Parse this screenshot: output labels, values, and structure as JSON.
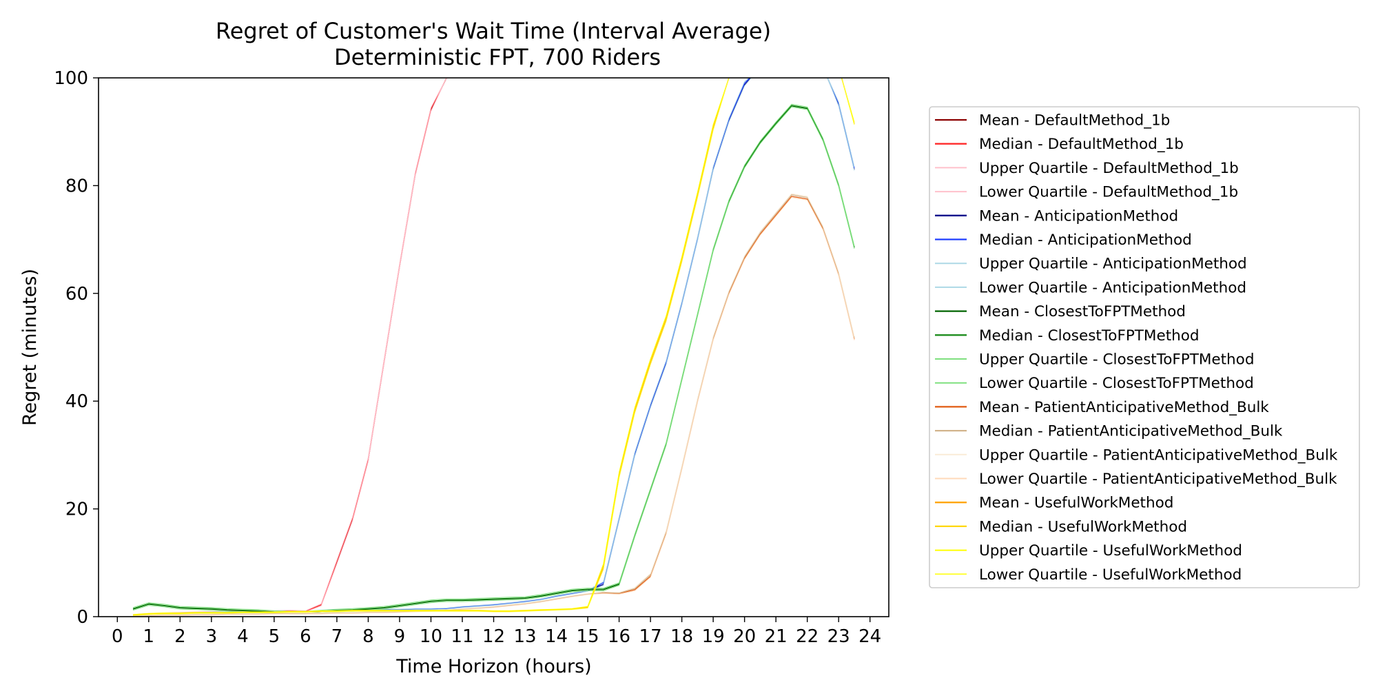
{
  "chart_data": {
    "type": "line",
    "title": "Regret of Customer's Wait Time (Interval Average)",
    "subtitle": "Deterministic FPT, 700 Riders",
    "xlabel": "Time Horizon (hours)",
    "ylabel": "Regret (minutes)",
    "xlim": [
      -0.6,
      24.6
    ],
    "ylim": [
      0,
      100
    ],
    "xticks": [
      0,
      1,
      2,
      3,
      4,
      5,
      6,
      7,
      8,
      9,
      10,
      11,
      12,
      13,
      14,
      15,
      16,
      17,
      18,
      19,
      20,
      21,
      22,
      23,
      24
    ],
    "yticks": [
      0,
      20,
      40,
      60,
      80,
      100
    ],
    "grid": false,
    "legend_position": "outside-right",
    "x": [
      0.5,
      1,
      1.5,
      2,
      2.5,
      3,
      3.5,
      4,
      4.5,
      5,
      5.5,
      6,
      6.5,
      7,
      7.5,
      8,
      8.5,
      9,
      9.5,
      10,
      10.5,
      11,
      11.5,
      12,
      12.5,
      13,
      13.5,
      14,
      14.5,
      15,
      15.5,
      16,
      16.5,
      17,
      17.5,
      18,
      18.5,
      19,
      19.5,
      20,
      20.5,
      21,
      21.5,
      22,
      22.5,
      23,
      23.5
    ],
    "series": [
      {
        "name": "Mean - DefaultMethod_1b",
        "color": "#8b0000",
        "width": 1.3,
        "values": [
          0.3,
          0.5,
          0.6,
          0.7,
          0.8,
          0.9,
          0.9,
          1.0,
          1.0,
          1.0,
          1.1,
          1.0,
          2.2,
          10,
          18,
          29,
          47,
          65,
          82,
          94,
          100,
          102,
          102,
          102,
          102,
          102,
          102,
          102,
          102,
          102,
          102,
          102,
          102,
          102,
          102,
          102,
          102,
          102,
          102,
          102,
          102,
          102,
          102,
          102,
          102,
          102,
          102
        ]
      },
      {
        "name": "Median - DefaultMethod_1b",
        "color": "#ff2a2a",
        "width": 1.3,
        "values": [
          0.3,
          0.5,
          0.6,
          0.7,
          0.8,
          0.9,
          0.9,
          1.0,
          1.0,
          1.0,
          1.1,
          1.0,
          2.2,
          10.3,
          18.3,
          29.3,
          47.3,
          65.3,
          82.3,
          94.3,
          100,
          102,
          102,
          102,
          102,
          102,
          102,
          102,
          102,
          102,
          102,
          102,
          102,
          102,
          102,
          102,
          102,
          102,
          102,
          102,
          102,
          102,
          102,
          102,
          102,
          102,
          102
        ]
      },
      {
        "name": "Upper Quartile - DefaultMethod_1b",
        "color": "#ffc0cb",
        "width": 1,
        "values": [
          0.4,
          0.6,
          0.7,
          0.8,
          0.9,
          1.0,
          1.0,
          1.1,
          1.1,
          1.1,
          1.2,
          1.1,
          2.4,
          10.5,
          18.5,
          29.5,
          47.5,
          65.5,
          82.5,
          94.5,
          100,
          102,
          102,
          102,
          102,
          102,
          102,
          102,
          102,
          102,
          102,
          102,
          102,
          102,
          102,
          102,
          102,
          102,
          102,
          102,
          102,
          102,
          102,
          102,
          102,
          102,
          102
        ]
      },
      {
        "name": "Lower Quartile - DefaultMethod_1b",
        "color": "#ffc0cb",
        "width": 1,
        "values": [
          0.2,
          0.4,
          0.5,
          0.6,
          0.7,
          0.8,
          0.8,
          0.9,
          0.9,
          0.9,
          1.0,
          0.9,
          2.0,
          9.8,
          17.8,
          28.8,
          46.8,
          64.8,
          81.8,
          93.8,
          100,
          102,
          102,
          102,
          102,
          102,
          102,
          102,
          102,
          102,
          102,
          102,
          102,
          102,
          102,
          102,
          102,
          102,
          102,
          102,
          102,
          102,
          102,
          102,
          102,
          102,
          102
        ]
      },
      {
        "name": "Mean - AnticipationMethod",
        "color": "#00008b",
        "width": 1.3,
        "values": [
          0.2,
          0.4,
          0.5,
          0.6,
          0.7,
          0.8,
          0.8,
          0.9,
          0.9,
          0.9,
          0.9,
          0.9,
          1.0,
          1.1,
          1.1,
          1.2,
          1.3,
          1.3,
          1.4,
          1.4,
          1.5,
          1.8,
          2.0,
          2.2,
          2.5,
          2.8,
          3.2,
          3.8,
          4.3,
          4.8,
          6.0,
          18.0,
          30.0,
          39.0,
          47.0,
          58.0,
          70.0,
          83.0,
          92.0,
          98.7,
          102,
          102,
          102,
          102,
          102,
          95.0,
          83.0
        ]
      },
      {
        "name": "Median - AnticipationMethod",
        "color": "#1f3fff",
        "width": 1.3,
        "values": [
          0.2,
          0.4,
          0.5,
          0.6,
          0.7,
          0.8,
          0.8,
          0.9,
          0.9,
          0.9,
          0.9,
          0.9,
          1.0,
          1.1,
          1.1,
          1.2,
          1.3,
          1.3,
          1.4,
          1.4,
          1.5,
          1.8,
          2.0,
          2.2,
          2.5,
          2.8,
          3.2,
          3.8,
          4.3,
          4.8,
          6.3,
          18.3,
          30.3,
          39.3,
          47.3,
          58.3,
          70.3,
          83.3,
          92.3,
          99.0,
          102,
          102,
          102,
          102,
          102,
          95.3,
          83.3
        ]
      },
      {
        "name": "Upper Quartile - AnticipationMethod",
        "color": "#add8e6",
        "width": 1,
        "values": [
          0.3,
          0.5,
          0.6,
          0.7,
          0.8,
          0.9,
          0.9,
          1.0,
          1.0,
          1.0,
          1.0,
          1.0,
          1.1,
          1.2,
          1.2,
          1.3,
          1.4,
          1.4,
          1.5,
          1.5,
          1.6,
          1.9,
          2.1,
          2.3,
          2.6,
          2.9,
          3.3,
          3.9,
          4.4,
          4.9,
          6.5,
          18.5,
          30.5,
          39.5,
          47.5,
          58.5,
          70.5,
          83.5,
          92.5,
          99.3,
          102,
          102,
          102,
          102,
          102,
          95.5,
          83.5
        ]
      },
      {
        "name": "Lower Quartile - AnticipationMethod",
        "color": "#add8e6",
        "width": 1,
        "values": [
          0.1,
          0.3,
          0.4,
          0.5,
          0.6,
          0.7,
          0.7,
          0.8,
          0.8,
          0.8,
          0.8,
          0.8,
          0.9,
          1.0,
          1.0,
          1.1,
          1.2,
          1.2,
          1.3,
          1.3,
          1.4,
          1.7,
          1.9,
          2.1,
          2.4,
          2.7,
          3.1,
          3.7,
          4.2,
          4.7,
          5.8,
          17.8,
          29.8,
          38.8,
          46.8,
          57.8,
          69.8,
          82.8,
          91.8,
          98.5,
          102,
          102,
          102,
          102,
          102,
          94.8,
          82.8
        ]
      },
      {
        "name": "Mean - ClosestToFPTMethod",
        "color": "#006400",
        "width": 1.3,
        "values": [
          1.4,
          2.3,
          2.0,
          1.6,
          1.5,
          1.4,
          1.2,
          1.1,
          1.0,
          0.8,
          0.7,
          0.7,
          0.9,
          1.1,
          1.2,
          1.4,
          1.6,
          2.0,
          2.4,
          2.8,
          3.0,
          3.0,
          3.1,
          3.2,
          3.3,
          3.4,
          3.8,
          4.3,
          4.8,
          5.0,
          5.0,
          6.0,
          15.0,
          23.5,
          32.0,
          44.0,
          56.0,
          68.0,
          77.0,
          83.5,
          88.0,
          91.5,
          94.8,
          94.3,
          88.5,
          80.0,
          68.5
        ]
      },
      {
        "name": "Median - ClosestToFPTMethod",
        "color": "#1c8c1c",
        "width": 1.3,
        "values": [
          1.5,
          2.4,
          2.1,
          1.7,
          1.6,
          1.5,
          1.3,
          1.2,
          1.1,
          0.9,
          0.8,
          0.8,
          1.0,
          1.2,
          1.3,
          1.5,
          1.7,
          2.1,
          2.5,
          2.9,
          3.1,
          3.1,
          3.2,
          3.3,
          3.4,
          3.5,
          3.9,
          4.4,
          4.9,
          5.1,
          5.1,
          6.1,
          15.1,
          23.6,
          32.1,
          44.1,
          56.1,
          68.1,
          77.1,
          83.6,
          88.1,
          91.6,
          94.9,
          94.4,
          88.6,
          80.1,
          68.6
        ]
      },
      {
        "name": "Upper Quartile - ClosestToFPTMethod",
        "color": "#7fe07f",
        "width": 1,
        "values": [
          1.7,
          2.6,
          2.3,
          1.9,
          1.8,
          1.7,
          1.5,
          1.4,
          1.3,
          1.1,
          1.0,
          1.0,
          1.2,
          1.4,
          1.5,
          1.7,
          1.9,
          2.3,
          2.7,
          3.1,
          3.3,
          3.3,
          3.4,
          3.5,
          3.6,
          3.7,
          4.1,
          4.6,
          5.1,
          5.3,
          5.3,
          6.3,
          15.3,
          23.8,
          32.3,
          44.3,
          56.3,
          68.3,
          77.3,
          83.8,
          88.3,
          91.8,
          95.1,
          94.6,
          88.8,
          80.3,
          68.8
        ]
      },
      {
        "name": "Lower Quartile - ClosestToFPTMethod",
        "color": "#7fe07f",
        "width": 1,
        "values": [
          1.2,
          2.1,
          1.8,
          1.4,
          1.3,
          1.2,
          1.0,
          0.9,
          0.8,
          0.6,
          0.5,
          0.5,
          0.7,
          0.9,
          1.0,
          1.2,
          1.4,
          1.8,
          2.2,
          2.6,
          2.8,
          2.8,
          2.9,
          3.0,
          3.1,
          3.2,
          3.6,
          4.1,
          4.6,
          4.8,
          4.8,
          5.8,
          14.8,
          23.3,
          31.8,
          43.8,
          55.8,
          67.8,
          76.8,
          83.3,
          87.8,
          91.3,
          94.6,
          94.1,
          88.3,
          79.8,
          68.3
        ]
      },
      {
        "name": "Mean - PatientAnticipativeMethod_Bulk",
        "color": "#e05a10",
        "width": 1.3,
        "values": [
          0.1,
          0.2,
          0.3,
          0.3,
          0.4,
          0.4,
          0.5,
          0.5,
          0.5,
          0.6,
          0.6,
          0.6,
          0.6,
          0.7,
          0.7,
          0.8,
          0.8,
          0.9,
          1.0,
          1.1,
          1.2,
          1.4,
          1.6,
          1.8,
          2.1,
          2.4,
          2.8,
          3.3,
          3.8,
          4.2,
          4.4,
          4.3,
          5.0,
          7.5,
          15.5,
          27.5,
          40.0,
          51.5,
          60.0,
          66.5,
          71.0,
          74.5,
          78.0,
          77.5,
          72.0,
          63.5,
          51.5
        ]
      },
      {
        "name": "Median - PatientAnticipativeMethod_Bulk",
        "color": "#d2b48c",
        "width": 1.3,
        "values": [
          0.1,
          0.2,
          0.3,
          0.3,
          0.4,
          0.4,
          0.5,
          0.5,
          0.5,
          0.6,
          0.6,
          0.6,
          0.6,
          0.7,
          0.7,
          0.8,
          0.8,
          0.9,
          1.0,
          1.1,
          1.2,
          1.4,
          1.6,
          1.8,
          2.1,
          2.4,
          2.8,
          3.3,
          3.8,
          4.2,
          4.5,
          4.4,
          5.2,
          7.8,
          15.8,
          27.8,
          40.3,
          51.8,
          60.3,
          66.8,
          71.3,
          74.8,
          78.3,
          77.8,
          72.3,
          63.8,
          51.8
        ]
      },
      {
        "name": "Upper Quartile - PatientAnticipativeMethod_Bulk",
        "color": "#faebd7",
        "width": 1,
        "values": [
          0.2,
          0.3,
          0.4,
          0.4,
          0.5,
          0.5,
          0.6,
          0.6,
          0.6,
          0.7,
          0.7,
          0.7,
          0.7,
          0.8,
          0.8,
          0.9,
          0.9,
          1.0,
          1.1,
          1.2,
          1.3,
          1.5,
          1.7,
          1.9,
          2.2,
          2.5,
          2.9,
          3.4,
          3.9,
          4.3,
          4.6,
          4.5,
          5.4,
          8.0,
          16.0,
          28.0,
          40.5,
          52.0,
          60.5,
          67.0,
          71.5,
          75.0,
          78.5,
          78.0,
          72.5,
          64.0,
          52.0
        ]
      },
      {
        "name": "Lower Quartile - PatientAnticipativeMethod_Bulk",
        "color": "#ffdab9",
        "width": 1,
        "values": [
          0.05,
          0.1,
          0.2,
          0.2,
          0.3,
          0.3,
          0.4,
          0.4,
          0.4,
          0.5,
          0.5,
          0.5,
          0.5,
          0.6,
          0.6,
          0.7,
          0.7,
          0.8,
          0.9,
          1.0,
          1.1,
          1.3,
          1.5,
          1.7,
          2.0,
          2.3,
          2.7,
          3.2,
          3.7,
          4.1,
          4.3,
          4.2,
          4.8,
          7.3,
          15.3,
          27.3,
          39.8,
          51.3,
          59.8,
          66.3,
          70.8,
          74.3,
          77.8,
          77.3,
          71.8,
          63.3,
          51.3
        ]
      },
      {
        "name": "Mean - UsefulWorkMethod",
        "color": "#ffa500",
        "width": 1.3,
        "values": [
          0.3,
          0.5,
          0.6,
          0.6,
          0.7,
          0.7,
          0.7,
          0.8,
          0.8,
          0.8,
          0.9,
          0.9,
          1.0,
          1.0,
          1.1,
          1.1,
          1.1,
          1.1,
          1.1,
          1.1,
          1.1,
          1.1,
          1.1,
          1.0,
          1.0,
          1.1,
          1.2,
          1.3,
          1.4,
          1.7,
          9.0,
          26.0,
          38.0,
          47.0,
          55.0,
          66.0,
          78.0,
          90.5,
          100,
          102,
          102,
          102,
          102,
          102,
          102,
          102,
          91.5
        ]
      },
      {
        "name": "Median - UsefulWorkMethod",
        "color": "#ffd700",
        "width": 1.3,
        "values": [
          0.3,
          0.5,
          0.6,
          0.6,
          0.7,
          0.7,
          0.7,
          0.8,
          0.8,
          0.8,
          0.9,
          0.9,
          1.0,
          1.0,
          1.1,
          1.1,
          1.1,
          1.1,
          1.1,
          1.1,
          1.1,
          1.1,
          1.1,
          1.0,
          1.0,
          1.1,
          1.2,
          1.3,
          1.4,
          1.8,
          9.5,
          26.5,
          38.5,
          47.5,
          55.5,
          66.5,
          78.5,
          91.0,
          100,
          102,
          102,
          102,
          102,
          102,
          102,
          102,
          91.5
        ]
      },
      {
        "name": "Upper Quartile - UsefulWorkMethod",
        "color": "#ffff00",
        "width": 1,
        "values": [
          0.4,
          0.6,
          0.7,
          0.7,
          0.8,
          0.8,
          0.8,
          0.9,
          0.9,
          0.9,
          1.0,
          1.0,
          1.1,
          1.1,
          1.2,
          1.2,
          1.2,
          1.2,
          1.2,
          1.2,
          1.2,
          1.2,
          1.2,
          1.1,
          1.1,
          1.2,
          1.3,
          1.4,
          1.5,
          1.9,
          9.8,
          26.8,
          38.8,
          47.8,
          55.8,
          66.8,
          78.8,
          91.3,
          100,
          102,
          102,
          102,
          102,
          102,
          102,
          102,
          91.8
        ]
      },
      {
        "name": "Lower Quartile - UsefulWorkMethod",
        "color": "#ffff33",
        "width": 1,
        "values": [
          0.2,
          0.4,
          0.5,
          0.5,
          0.6,
          0.6,
          0.6,
          0.7,
          0.7,
          0.7,
          0.8,
          0.8,
          0.9,
          0.9,
          1.0,
          1.0,
          1.0,
          1.0,
          1.0,
          1.0,
          1.0,
          1.0,
          1.0,
          0.9,
          0.9,
          1.0,
          1.1,
          1.2,
          1.3,
          1.6,
          8.8,
          25.8,
          37.8,
          46.8,
          54.8,
          65.8,
          77.8,
          90.3,
          100,
          102,
          102,
          102,
          102,
          102,
          102,
          102,
          91.3
        ]
      }
    ]
  }
}
